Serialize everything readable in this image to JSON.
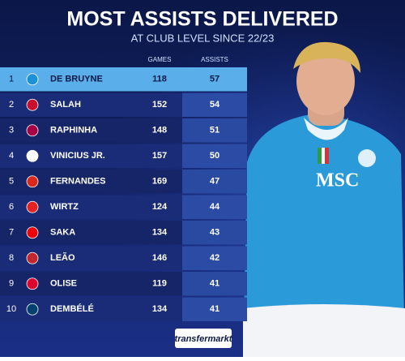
{
  "header": {
    "title": "MOST ASSISTS DELIVERED",
    "subtitle": "AT CLUB LEVEL SINCE 22/23"
  },
  "table": {
    "columns": [
      "GAMES",
      "ASSISTS"
    ],
    "rows": [
      [
        1,
        "DE BRUYNE",
        118,
        57
      ],
      [
        2,
        "SALAH",
        152,
        54
      ],
      [
        3,
        "RAPHINHA",
        148,
        51
      ],
      [
        4,
        "VINICIUS JR.",
        157,
        50
      ],
      [
        5,
        "FERNANDES",
        169,
        47
      ],
      [
        6,
        "WIRTZ",
        124,
        44
      ],
      [
        7,
        "SAKA",
        134,
        43
      ],
      [
        8,
        "LEÃO",
        146,
        42
      ],
      [
        9,
        "OLISE",
        119,
        41
      ],
      [
        10,
        "DEMBÉLÉ",
        134,
        41
      ]
    ]
  },
  "footer": {
    "logo": "transfermarkt"
  }
}
